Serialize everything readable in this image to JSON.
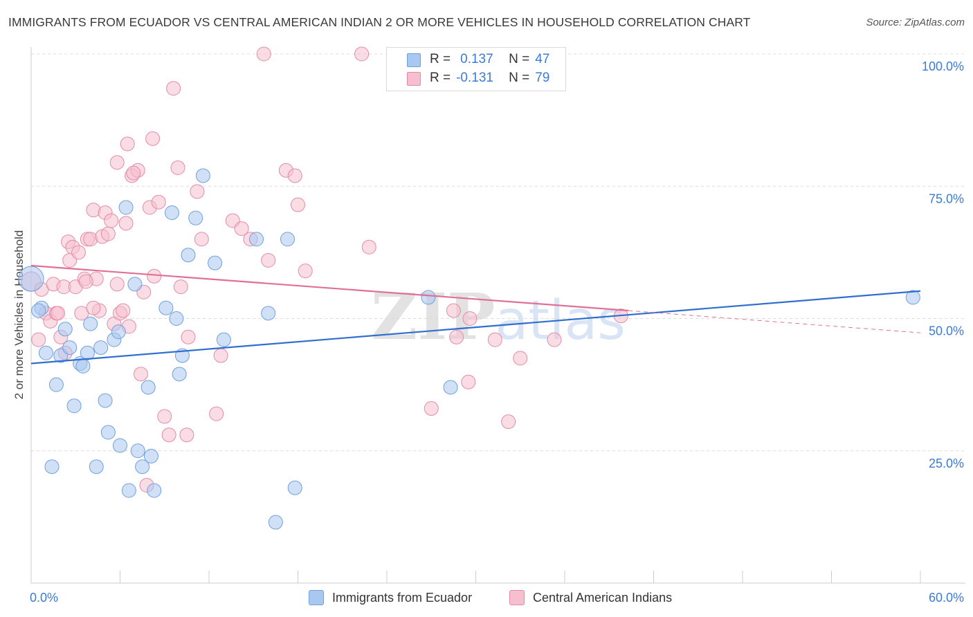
{
  "title": "IMMIGRANTS FROM ECUADOR VS CENTRAL AMERICAN INDIAN 2 OR MORE VEHICLES IN HOUSEHOLD CORRELATION CHART",
  "source": "Source: ZipAtlas.com",
  "watermark": "ZIPatlas",
  "legend": {
    "r_label": "R =",
    "n_label": "N =",
    "rows": [
      {
        "r": "0.137",
        "n": "47"
      },
      {
        "r": "-0.131",
        "n": "79"
      }
    ]
  },
  "colors": {
    "blue_fill": "#a9c8f0",
    "blue_stroke": "#6f9fdc",
    "blue_line": "#2e6fd0",
    "pink_fill": "#f6bfd0",
    "pink_stroke": "#e48aa8",
    "pink_line": "#e07096",
    "axis_text": "#3a7bd5"
  },
  "chart_data": {
    "type": "scatter",
    "title": "IMMIGRANTS FROM ECUADOR VS CENTRAL AMERICAN INDIAN 2 OR MORE VEHICLES IN HOUSEHOLD CORRELATION CHART",
    "xlabel": "",
    "ylabel": "2 or more Vehicles in Household",
    "xlim": [
      0,
      60
    ],
    "ylim": [
      0,
      100
    ],
    "x_tick_labels": [
      "0.0%",
      "60.0%"
    ],
    "y_ticks": [
      25,
      50,
      75,
      100
    ],
    "y_tick_labels": [
      "25.0%",
      "50.0%",
      "75.0%",
      "100.0%"
    ],
    "grid": true,
    "legend_position": "top-center",
    "series": [
      {
        "name": "Immigrants from Ecuador",
        "r": 0.137,
        "n": 47,
        "trend": {
          "x": [
            0,
            60
          ],
          "y": [
            41.5,
            55.2
          ],
          "extended_x": null
        },
        "points": [
          [
            0.0,
            57.5,
            18
          ],
          [
            0.7,
            52.0,
            10
          ],
          [
            1.0,
            43.5,
            10
          ],
          [
            1.4,
            22.0,
            10
          ],
          [
            1.7,
            37.5,
            10
          ],
          [
            2.0,
            43.0,
            10
          ],
          [
            2.3,
            48.0,
            10
          ],
          [
            2.6,
            44.5,
            10
          ],
          [
            2.9,
            33.5,
            10
          ],
          [
            3.3,
            41.5,
            10
          ],
          [
            3.5,
            41.0,
            10
          ],
          [
            3.8,
            43.5,
            10
          ],
          [
            4.0,
            49.0,
            10
          ],
          [
            4.4,
            22.0,
            10
          ],
          [
            4.7,
            44.5,
            10
          ],
          [
            5.0,
            34.5,
            10
          ],
          [
            5.2,
            28.5,
            10
          ],
          [
            5.6,
            46.0,
            10
          ],
          [
            5.9,
            47.5,
            10
          ],
          [
            6.0,
            26.0,
            10
          ],
          [
            6.4,
            71.0,
            10
          ],
          [
            6.6,
            17.5,
            10
          ],
          [
            7.0,
            56.5,
            10
          ],
          [
            7.2,
            25.0,
            10
          ],
          [
            7.5,
            22.0,
            10
          ],
          [
            7.9,
            37.0,
            10
          ],
          [
            8.1,
            24.0,
            10
          ],
          [
            8.3,
            17.5,
            10
          ],
          [
            9.1,
            52.0,
            10
          ],
          [
            9.5,
            70.0,
            10
          ],
          [
            9.8,
            50.0,
            10
          ],
          [
            10.0,
            39.5,
            10
          ],
          [
            10.2,
            43.0,
            10
          ],
          [
            10.6,
            62.0,
            10
          ],
          [
            11.1,
            69.0,
            10
          ],
          [
            11.6,
            77.0,
            10
          ],
          [
            12.4,
            60.5,
            10
          ],
          [
            13.0,
            46.0,
            10
          ],
          [
            15.2,
            65.0,
            10
          ],
          [
            16.0,
            51.0,
            10
          ],
          [
            16.5,
            11.5,
            10
          ],
          [
            17.3,
            65.0,
            10
          ],
          [
            17.8,
            18.0,
            10
          ],
          [
            26.8,
            54.0,
            10
          ],
          [
            28.3,
            37.0,
            10
          ],
          [
            59.5,
            54.0,
            10
          ],
          [
            0.5,
            51.5,
            10
          ]
        ]
      },
      {
        "name": "Central American Indians",
        "r": -0.131,
        "n": 79,
        "trend": {
          "x": [
            0,
            40.3
          ],
          "y": [
            60.0,
            51.5
          ],
          "extended_x": [
            40.3,
            60
          ],
          "extended_y": [
            51.5,
            47.3
          ]
        },
        "points": [
          [
            0.0,
            57.0,
            14
          ],
          [
            0.5,
            46.0,
            10
          ],
          [
            0.7,
            55.5,
            10
          ],
          [
            1.0,
            51.0,
            10
          ],
          [
            1.3,
            49.5,
            10
          ],
          [
            1.5,
            56.5,
            10
          ],
          [
            1.7,
            51.0,
            10
          ],
          [
            2.0,
            46.5,
            10
          ],
          [
            2.2,
            56.0,
            10
          ],
          [
            2.5,
            64.5,
            10
          ],
          [
            2.6,
            61.0,
            10
          ],
          [
            2.8,
            63.5,
            10
          ],
          [
            3.0,
            56.0,
            10
          ],
          [
            3.2,
            62.5,
            10
          ],
          [
            3.4,
            51.0,
            10
          ],
          [
            3.6,
            57.5,
            10
          ],
          [
            3.8,
            65.0,
            10
          ],
          [
            4.0,
            65.0,
            10
          ],
          [
            4.2,
            70.5,
            10
          ],
          [
            4.4,
            57.5,
            10
          ],
          [
            4.6,
            51.5,
            10
          ],
          [
            4.8,
            65.5,
            10
          ],
          [
            5.0,
            70.0,
            10
          ],
          [
            5.2,
            66.0,
            10
          ],
          [
            5.4,
            68.5,
            10
          ],
          [
            5.6,
            49.0,
            10
          ],
          [
            5.8,
            79.5,
            10
          ],
          [
            6.0,
            51.0,
            10
          ],
          [
            6.2,
            51.5,
            10
          ],
          [
            6.4,
            68.0,
            10
          ],
          [
            6.5,
            83.0,
            10
          ],
          [
            6.6,
            48.5,
            10
          ],
          [
            6.8,
            77.0,
            10
          ],
          [
            7.2,
            78.0,
            10
          ],
          [
            7.4,
            39.5,
            10
          ],
          [
            7.6,
            55.0,
            10
          ],
          [
            7.8,
            18.5,
            10
          ],
          [
            8.0,
            71.0,
            10
          ],
          [
            8.2,
            84.0,
            10
          ],
          [
            8.3,
            58.0,
            10
          ],
          [
            8.6,
            72.0,
            10
          ],
          [
            9.0,
            31.5,
            10
          ],
          [
            9.3,
            28.0,
            10
          ],
          [
            9.6,
            93.5,
            10
          ],
          [
            9.9,
            78.5,
            10
          ],
          [
            10.1,
            56.0,
            10
          ],
          [
            10.5,
            28.0,
            10
          ],
          [
            10.6,
            46.5,
            10
          ],
          [
            11.2,
            74.0,
            10
          ],
          [
            11.5,
            65.0,
            10
          ],
          [
            12.5,
            32.0,
            10
          ],
          [
            12.8,
            43.0,
            10
          ],
          [
            13.6,
            68.5,
            10
          ],
          [
            14.2,
            67.0,
            10
          ],
          [
            14.8,
            65.0,
            10
          ],
          [
            15.7,
            100.0,
            10
          ],
          [
            16.0,
            61.0,
            10
          ],
          [
            17.2,
            78.0,
            10
          ],
          [
            17.8,
            77.0,
            10
          ],
          [
            18.0,
            71.5,
            10
          ],
          [
            18.5,
            59.0,
            10
          ],
          [
            22.3,
            100.0,
            10
          ],
          [
            22.8,
            63.5,
            10
          ],
          [
            27.0,
            33.0,
            10
          ],
          [
            28.5,
            51.5,
            10
          ],
          [
            28.7,
            46.5,
            10
          ],
          [
            29.5,
            38.0,
            10
          ],
          [
            29.6,
            50.0,
            10
          ],
          [
            31.3,
            46.0,
            10
          ],
          [
            32.2,
            30.5,
            10
          ],
          [
            33.0,
            42.5,
            10
          ],
          [
            35.3,
            46.0,
            10
          ],
          [
            39.8,
            50.5,
            10
          ],
          [
            1.8,
            51.0,
            10
          ],
          [
            2.3,
            43.5,
            10
          ],
          [
            4.2,
            52.0,
            10
          ],
          [
            5.8,
            56.5,
            10
          ],
          [
            3.7,
            57.0,
            10
          ],
          [
            6.9,
            77.5,
            10
          ]
        ]
      }
    ]
  },
  "bottom_legend": [
    {
      "label": "Immigrants from Ecuador"
    },
    {
      "label": "Central American Indians"
    }
  ]
}
